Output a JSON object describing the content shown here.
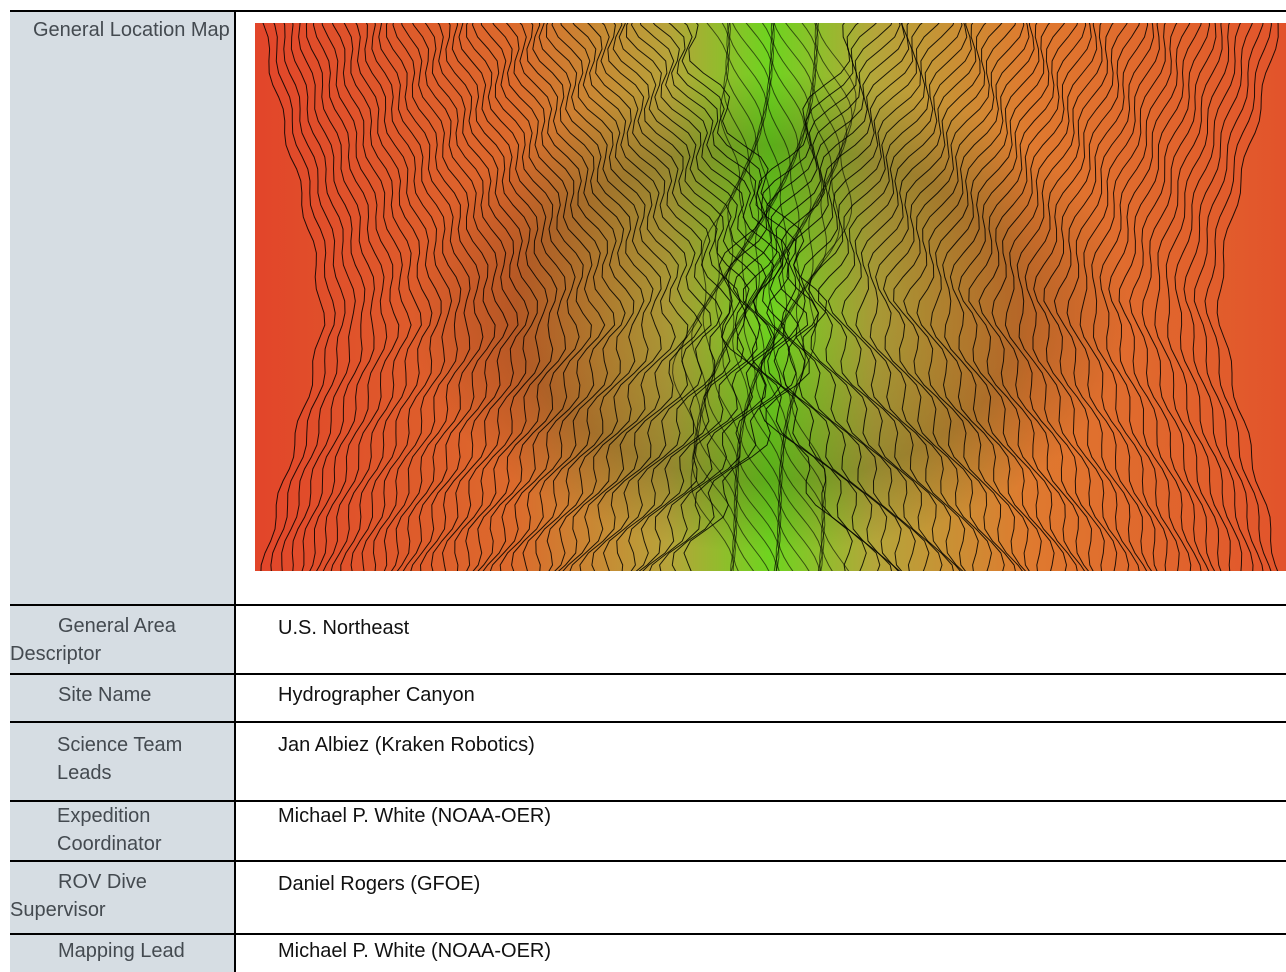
{
  "rows": [
    {
      "label": "General Location Map",
      "value": ""
    },
    {
      "label": "General Area Descriptor",
      "value": "U.S. Northeast"
    },
    {
      "label": "Site Name",
      "value": "Hydrographer Canyon"
    },
    {
      "label": "Science Team Leads",
      "value": "Jan Albiez (Kraken Robotics)"
    },
    {
      "label": "Expedition Coordinator",
      "value": "Michael P. White (NOAA-OER)"
    },
    {
      "label": "ROV Dive Supervisor",
      "value": "Daniel Rogers  (GFOE)"
    },
    {
      "label": "Mapping Lead",
      "value": "Michael P. White  (NOAA-OER)"
    }
  ],
  "map": {
    "icon": "bathymetry-contour-map",
    "colors": {
      "shallow": "#e2452a",
      "mid": "#c98a2d",
      "deep": "#66d21c"
    }
  }
}
